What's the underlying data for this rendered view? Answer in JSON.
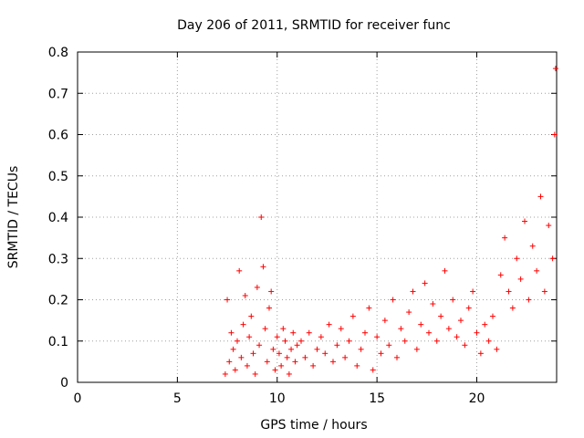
{
  "chart_data": {
    "type": "scatter",
    "title": "Day 206 of 2011, SRMTID for receiver func",
    "xlabel": "GPS time / hours",
    "ylabel": "SRMTID / TECUs",
    "xlim": [
      0,
      24
    ],
    "ylim": [
      0,
      0.8
    ],
    "xticks": [
      0,
      5,
      10,
      15,
      20
    ],
    "xtick_labels": [
      "0",
      "5",
      "10",
      "15",
      "20"
    ],
    "yticks": [
      0,
      0.1,
      0.2,
      0.3,
      0.4,
      0.5,
      0.6,
      0.7,
      0.8
    ],
    "ytick_labels": [
      "0",
      "0.1",
      "0.2",
      "0.3",
      "0.4",
      "0.5",
      "0.6",
      "0.7",
      "0.8"
    ],
    "grid": true,
    "marker": "+",
    "color": "#ff0000",
    "series": [
      {
        "name": "SRMTID",
        "x": [
          7.4,
          7.5,
          7.6,
          7.7,
          7.8,
          7.9,
          8.0,
          8.1,
          8.2,
          8.3,
          8.4,
          8.5,
          8.6,
          8.7,
          8.8,
          8.9,
          9.0,
          9.1,
          9.2,
          9.3,
          9.4,
          9.5,
          9.6,
          9.7,
          9.8,
          9.9,
          10.0,
          10.1,
          10.2,
          10.3,
          10.4,
          10.5,
          10.6,
          10.7,
          10.8,
          10.9,
          11.0,
          11.2,
          11.4,
          11.6,
          11.8,
          12.0,
          12.2,
          12.4,
          12.6,
          12.8,
          13.0,
          13.2,
          13.4,
          13.6,
          13.8,
          14.0,
          14.2,
          14.4,
          14.6,
          14.8,
          15.0,
          15.2,
          15.4,
          15.6,
          15.8,
          16.0,
          16.2,
          16.4,
          16.6,
          16.8,
          17.0,
          17.2,
          17.4,
          17.6,
          17.8,
          18.0,
          18.2,
          18.4,
          18.6,
          18.8,
          19.0,
          19.2,
          19.4,
          19.6,
          19.8,
          20.0,
          20.2,
          20.4,
          20.6,
          20.8,
          21.0,
          21.2,
          21.4,
          21.6,
          21.8,
          22.0,
          22.2,
          22.4,
          22.6,
          22.8,
          23.0,
          23.2,
          23.4,
          23.6,
          23.8,
          23.9,
          23.95
        ],
        "y": [
          0.02,
          0.2,
          0.05,
          0.12,
          0.08,
          0.03,
          0.1,
          0.27,
          0.06,
          0.14,
          0.21,
          0.04,
          0.11,
          0.16,
          0.07,
          0.02,
          0.23,
          0.09,
          0.4,
          0.28,
          0.13,
          0.05,
          0.18,
          0.22,
          0.08,
          0.03,
          0.11,
          0.07,
          0.04,
          0.13,
          0.1,
          0.06,
          0.02,
          0.08,
          0.12,
          0.05,
          0.09,
          0.1,
          0.06,
          0.12,
          0.04,
          0.08,
          0.11,
          0.07,
          0.14,
          0.05,
          0.09,
          0.13,
          0.06,
          0.1,
          0.16,
          0.04,
          0.08,
          0.12,
          0.18,
          0.03,
          0.11,
          0.07,
          0.15,
          0.09,
          0.2,
          0.06,
          0.13,
          0.1,
          0.17,
          0.22,
          0.08,
          0.14,
          0.24,
          0.12,
          0.19,
          0.1,
          0.16,
          0.27,
          0.13,
          0.2,
          0.11,
          0.15,
          0.09,
          0.18,
          0.22,
          0.12,
          0.07,
          0.14,
          0.1,
          0.16,
          0.08,
          0.26,
          0.35,
          0.22,
          0.18,
          0.3,
          0.25,
          0.39,
          0.2,
          0.33,
          0.27,
          0.45,
          0.22,
          0.38,
          0.3,
          0.6,
          0.76
        ]
      }
    ]
  }
}
